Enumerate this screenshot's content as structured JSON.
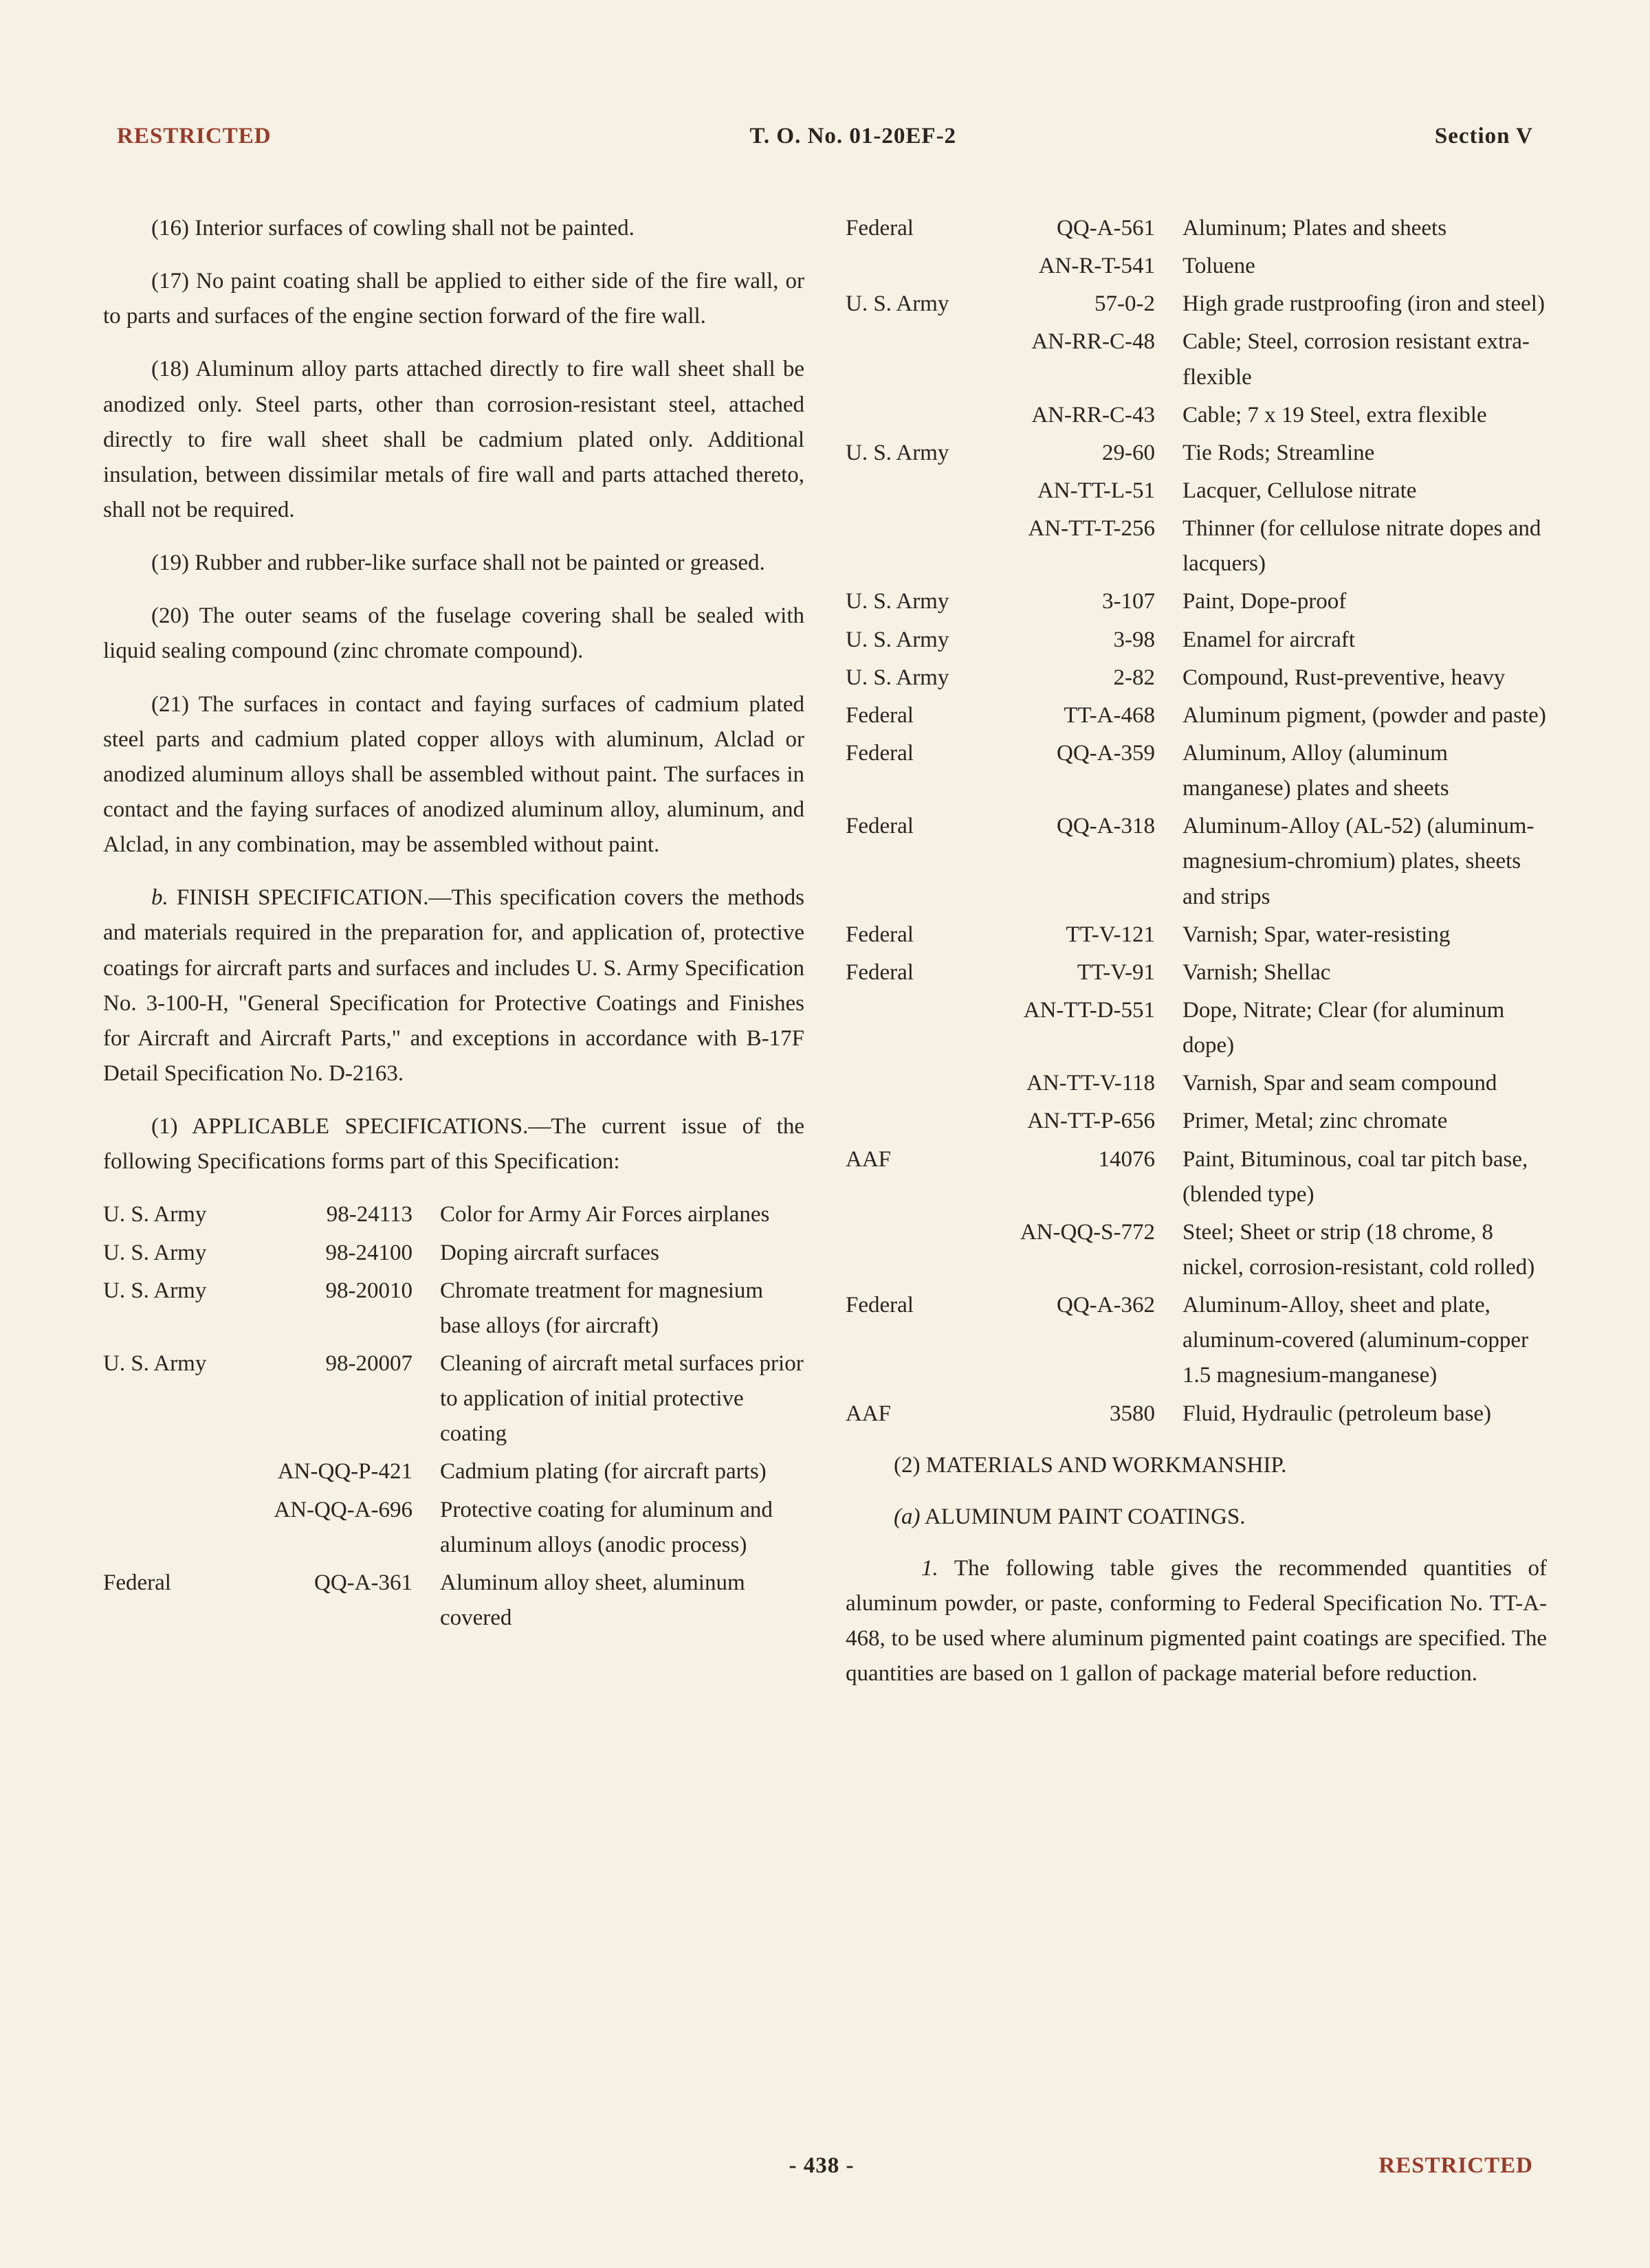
{
  "header": {
    "restricted": "RESTRICTED",
    "to_no": "T. O. No. 01-20EF-2",
    "section": "Section V"
  },
  "left_col": {
    "paras": [
      "(16) Interior surfaces of cowling shall not be painted.",
      "(17) No paint coating shall be applied to either side of the fire wall, or to parts and surfaces of the engine section forward of the fire wall.",
      "(18) Aluminum alloy parts attached directly to fire wall sheet shall be anodized only. Steel parts, other than corrosion-resistant steel, attached directly to fire wall sheet shall be cadmium plated only. Additional insulation, between dissimilar metals of fire wall and parts attached thereto, shall not be required.",
      "(19) Rubber and rubber-like surface shall not be painted or greased.",
      "(20) The outer seams of the fuselage covering shall be sealed with liquid sealing compound (zinc chromate compound).",
      "(21) The surfaces in contact and faying surfaces of cadmium plated steel parts and cadmium plated copper alloys with aluminum, Alclad or anodized aluminum alloys shall be assembled without paint. The surfaces in contact and the faying surfaces of anodized aluminum alloy, aluminum, and Alclad, in any combination, may be assembled without paint."
    ],
    "para_b_prefix": "b.",
    "para_b": " FINISH SPECIFICATION.—This specification covers the methods and materials required in the preparation for, and application of, protective coatings for aircraft parts and surfaces and includes U. S. Army Specification No. 3-100-H, \"General Specification for Protective Coatings and Finishes for Aircraft and Aircraft Parts,\" and exceptions in accordance with B-17F Detail Specification No. D-2163.",
    "para_1": "(1) APPLICABLE SPECIFICATIONS.—The current issue of the following Specifications forms part of this Specification:",
    "specs": [
      {
        "agency": "U. S. Army",
        "code": "98-24113",
        "desc": "Color for Army Air Forces airplanes"
      },
      {
        "agency": "U. S. Army",
        "code": "98-24100",
        "desc": "Doping aircraft surfaces"
      },
      {
        "agency": "U. S. Army",
        "code": "98-20010",
        "desc": "Chromate treatment for magnesium base alloys (for aircraft)"
      },
      {
        "agency": "U. S. Army",
        "code": "98-20007",
        "desc": "Cleaning of aircraft metal surfaces prior to application of initial protective coating"
      },
      {
        "agency": "",
        "code": "AN-QQ-P-421",
        "desc": "Cadmium plating (for aircraft parts)"
      },
      {
        "agency": "",
        "code": "AN-QQ-A-696",
        "desc": "Protective coating for aluminum and aluminum alloys (anodic process)"
      },
      {
        "agency": "Federal",
        "code": "QQ-A-361",
        "desc": "Aluminum alloy sheet, aluminum covered"
      }
    ]
  },
  "right_col": {
    "specs": [
      {
        "agency": "Federal",
        "code": "QQ-A-561",
        "desc": "Aluminum; Plates and sheets"
      },
      {
        "agency": "",
        "code": "AN-R-T-541",
        "desc": "Toluene"
      },
      {
        "agency": "U. S. Army",
        "code": "57-0-2",
        "desc": "High grade rustproofing (iron and steel)"
      },
      {
        "agency": "",
        "code": "AN-RR-C-48",
        "desc": "Cable; Steel, corrosion resistant extra-flexible"
      },
      {
        "agency": "",
        "code": "AN-RR-C-43",
        "desc": "Cable; 7 x 19 Steel, extra flexible"
      },
      {
        "agency": "U. S. Army",
        "code": "29-60",
        "desc": "Tie Rods; Streamline"
      },
      {
        "agency": "",
        "code": "AN-TT-L-51",
        "desc": "Lacquer, Cellulose nitrate"
      },
      {
        "agency": "",
        "code": "AN-TT-T-256",
        "desc": "Thinner (for cellulose nitrate dopes and lacquers)"
      },
      {
        "agency": "U. S. Army",
        "code": "3-107",
        "desc": "Paint, Dope-proof"
      },
      {
        "agency": "U. S. Army",
        "code": "3-98",
        "desc": "Enamel for aircraft"
      },
      {
        "agency": "U. S. Army",
        "code": "2-82",
        "desc": "Compound, Rust-preventive, heavy"
      },
      {
        "agency": "Federal",
        "code": "TT-A-468",
        "desc": "Aluminum pigment, (powder and paste)"
      },
      {
        "agency": "Federal",
        "code": "QQ-A-359",
        "desc": "Aluminum, Alloy (aluminum manganese) plates and sheets"
      },
      {
        "agency": "Federal",
        "code": "QQ-A-318",
        "desc": "Aluminum-Alloy (AL-52) (aluminum-magnesium-chromium) plates, sheets and strips"
      },
      {
        "agency": "Federal",
        "code": "TT-V-121",
        "desc": "Varnish; Spar, water-resisting"
      },
      {
        "agency": "Federal",
        "code": "TT-V-91",
        "desc": "Varnish; Shellac"
      },
      {
        "agency": "",
        "code": "AN-TT-D-551",
        "desc": "Dope, Nitrate; Clear (for aluminum dope)"
      },
      {
        "agency": "",
        "code": "AN-TT-V-118",
        "desc": "Varnish, Spar and seam compound"
      },
      {
        "agency": "",
        "code": "AN-TT-P-656",
        "desc": "Primer, Metal; zinc chromate"
      },
      {
        "agency": "AAF",
        "code": "14076",
        "desc": "Paint, Bituminous, coal tar pitch base, (blended type)"
      },
      {
        "agency": "",
        "code": "AN-QQ-S-772",
        "desc": "Steel; Sheet or strip (18 chrome, 8 nickel, corrosion-resistant, cold rolled)"
      },
      {
        "agency": "Federal",
        "code": "QQ-A-362",
        "desc": "Aluminum-Alloy, sheet and plate, aluminum-covered (aluminum-copper 1.5 magnesium-manganese)"
      },
      {
        "agency": "AAF",
        "code": "3580",
        "desc": "Fluid, Hydraulic (petroleum base)"
      }
    ],
    "sub2": "(2) MATERIALS AND WORKMANSHIP.",
    "sub_a_prefix": "(a)",
    "sub_a": " ALUMINUM PAINT COATINGS.",
    "para_end_prefix": "1.",
    "para_end": " The following table gives the recommended quantities of aluminum powder, or paste, conforming to Federal Specification No. TT-A-468, to be used where aluminum pigmented paint coatings are specified. The quantities are based on 1 gallon of package material before reduction."
  },
  "footer": {
    "page": "- 438 -",
    "restricted": "RESTRICTED"
  }
}
